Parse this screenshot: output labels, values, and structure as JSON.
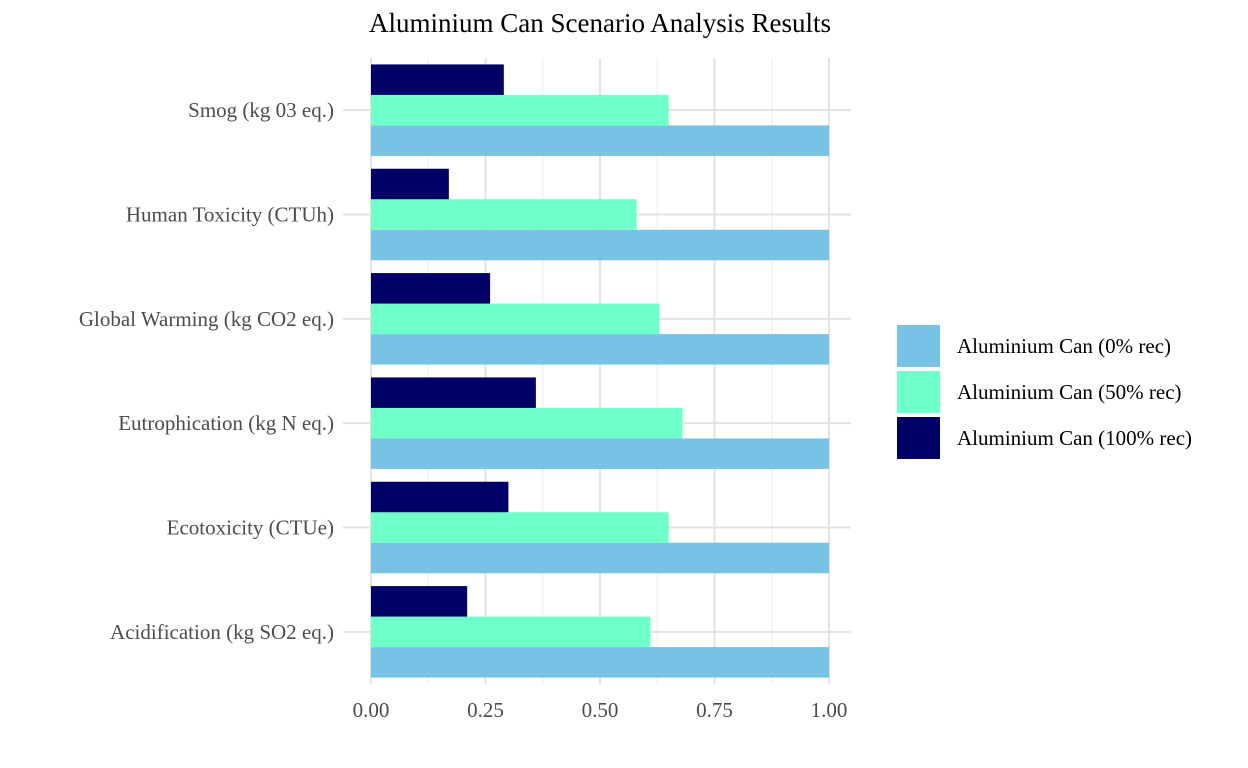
{
  "chart_data": {
    "type": "bar",
    "orientation": "horizontal",
    "title": "Aluminium Can Scenario Analysis Results",
    "xlabel": "",
    "ylabel": "",
    "categories": [
      "Acidification (kg SO2 eq.)",
      "Ecotoxicity (CTUe)",
      "Eutrophication (kg N eq.)",
      "Global Warming (kg CO2 eq.)",
      "Human Toxicity (CTUh)",
      "Smog (kg 03 eq.)"
    ],
    "series": [
      {
        "name": "Aluminium Can (0% rec)",
        "color": "#78C2E5",
        "values": [
          1.0,
          1.0,
          1.0,
          1.0,
          1.0,
          1.0
        ]
      },
      {
        "name": "Aluminium Can (50% rec)",
        "color": "#6FFFC8",
        "values": [
          0.61,
          0.65,
          0.68,
          0.63,
          0.58,
          0.65
        ]
      },
      {
        "name": "Aluminium Can (100% rec)",
        "color": "#000066",
        "values": [
          0.21,
          0.3,
          0.36,
          0.26,
          0.17,
          0.29
        ]
      }
    ],
    "xlim": [
      0,
      1.05
    ],
    "x_ticks": [
      "0.00",
      "0.25",
      "0.50",
      "0.75",
      "1.00"
    ],
    "grid": true,
    "legend_position": "right"
  }
}
